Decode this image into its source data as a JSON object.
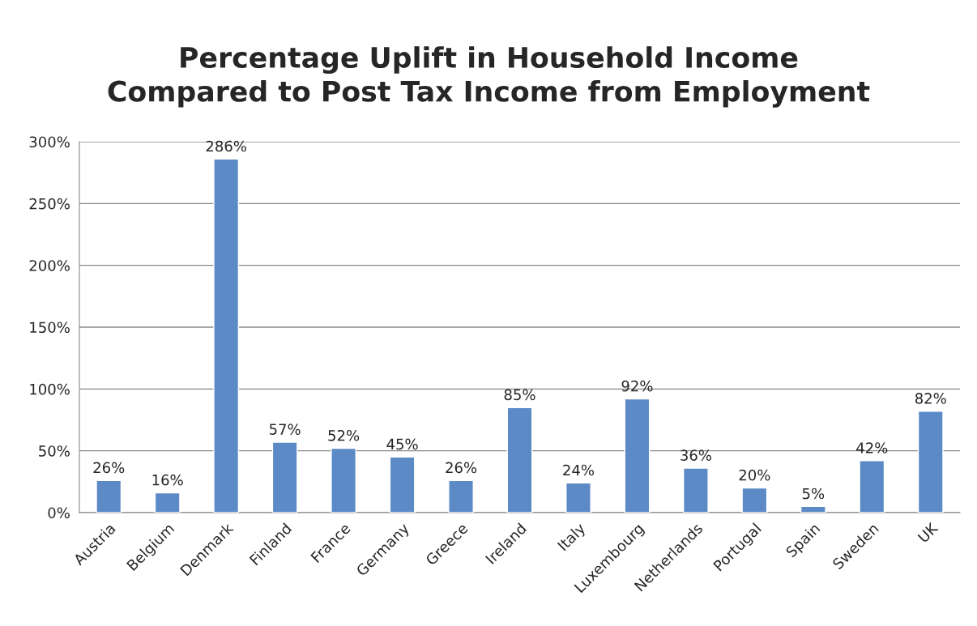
{
  "chart_data": {
    "type": "bar",
    "title": "Percentage Uplift in Household Income\nCompared to Post Tax Income from Employment",
    "categories": [
      "Austria",
      "Belgium",
      "Denmark",
      "Finland",
      "France",
      "Germany",
      "Greece",
      "Ireland",
      "Italy",
      "Luxembourg",
      "Netherlands",
      "Portugal",
      "Spain",
      "Sweden",
      "UK"
    ],
    "values": [
      26,
      16,
      286,
      57,
      52,
      45,
      26,
      85,
      24,
      92,
      36,
      20,
      5,
      42,
      82
    ],
    "value_labels": [
      "26%",
      "16%",
      "286%",
      "57%",
      "52%",
      "45%",
      "26%",
      "85%",
      "24%",
      "92%",
      "36%",
      "20%",
      "5%",
      "42%",
      "82%"
    ],
    "color": "#5b8ac6",
    "ylim": [
      0,
      300
    ],
    "yticks": [
      {
        "value": 0,
        "label": "0%"
      },
      {
        "value": 50,
        "label": "50%"
      },
      {
        "value": 100,
        "label": "100%"
      },
      {
        "value": 150,
        "label": "150%"
      },
      {
        "value": 200,
        "label": "200%"
      },
      {
        "value": 250,
        "label": "250%"
      },
      {
        "value": 300,
        "label": "300%"
      }
    ],
    "grid": "y"
  }
}
